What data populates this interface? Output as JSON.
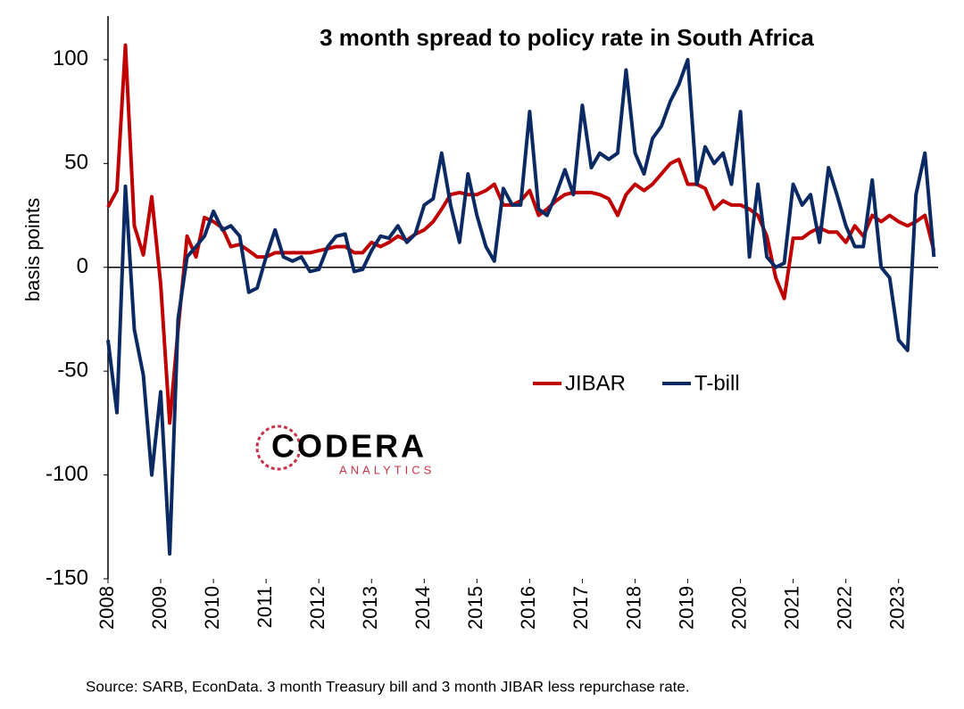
{
  "chart_data": {
    "type": "line",
    "title": "3 month spread to policy rate in South Africa",
    "ylabel": "basis points",
    "source": "Source: SARB, EconData. 3 month Treasury bill and 3 month JIBAR less repurchase rate.",
    "logo": {
      "name": "CODERA",
      "tagline": "ANALYTICS"
    },
    "legend": "center",
    "x": [
      2008.0,
      2008.17,
      2008.33,
      2008.5,
      2008.67,
      2008.83,
      2009.0,
      2009.17,
      2009.33,
      2009.5,
      2009.67,
      2009.83,
      2010.0,
      2010.17,
      2010.33,
      2010.5,
      2010.67,
      2010.83,
      2011.0,
      2011.17,
      2011.33,
      2011.5,
      2011.67,
      2011.83,
      2012.0,
      2012.17,
      2012.33,
      2012.5,
      2012.67,
      2012.83,
      2013.0,
      2013.17,
      2013.33,
      2013.5,
      2013.67,
      2013.83,
      2014.0,
      2014.17,
      2014.33,
      2014.5,
      2014.67,
      2014.83,
      2015.0,
      2015.17,
      2015.33,
      2015.5,
      2015.67,
      2015.83,
      2016.0,
      2016.17,
      2016.33,
      2016.5,
      2016.67,
      2016.83,
      2017.0,
      2017.17,
      2017.33,
      2017.5,
      2017.67,
      2017.83,
      2018.0,
      2018.17,
      2018.33,
      2018.5,
      2018.67,
      2018.83,
      2019.0,
      2019.17,
      2019.33,
      2019.5,
      2019.67,
      2019.83,
      2020.0,
      2020.17,
      2020.33,
      2020.5,
      2020.67,
      2020.83,
      2021.0,
      2021.17,
      2021.33,
      2021.5,
      2021.67,
      2021.83,
      2022.0,
      2022.17,
      2022.33,
      2022.5,
      2022.67,
      2022.83,
      2023.0,
      2023.17,
      2023.33,
      2023.5,
      2023.67
    ],
    "series": [
      {
        "name": "JIBAR",
        "color": "#c00000",
        "values": [
          29,
          37,
          107,
          20,
          6,
          34,
          -8,
          -75,
          -30,
          15,
          5,
          24,
          22,
          19,
          10,
          11,
          8,
          5,
          5,
          7,
          7,
          7,
          7,
          7,
          8,
          9,
          10,
          10,
          7,
          7,
          12,
          10,
          12,
          15,
          13,
          16,
          18,
          22,
          28,
          35,
          36,
          35,
          35,
          37,
          40,
          30,
          30,
          32,
          37,
          25,
          28,
          32,
          35,
          36,
          36,
          36,
          35,
          33,
          25,
          35,
          40,
          37,
          40,
          45,
          50,
          52,
          40,
          40,
          38,
          28,
          32,
          30,
          30,
          28,
          25,
          15,
          -5,
          -15,
          14,
          14,
          17,
          19,
          17,
          17,
          12,
          20,
          15,
          25,
          22,
          25,
          22,
          20,
          22,
          25,
          8
        ]
      },
      {
        "name": "T-bill",
        "color": "#0b2a63",
        "values": [
          -35,
          -70,
          39,
          -30,
          -52,
          -100,
          -60,
          -138,
          -25,
          5,
          10,
          15,
          27,
          18,
          20,
          15,
          -12,
          -10,
          5,
          18,
          5,
          3,
          5,
          -2,
          -1,
          10,
          15,
          16,
          -2,
          -1,
          8,
          15,
          14,
          20,
          12,
          16,
          30,
          33,
          55,
          30,
          12,
          45,
          25,
          10,
          3,
          38,
          30,
          30,
          75,
          28,
          25,
          35,
          47,
          35,
          78,
          48,
          55,
          52,
          55,
          95,
          55,
          45,
          62,
          68,
          80,
          88,
          100,
          40,
          58,
          50,
          55,
          40,
          75,
          5,
          40,
          5,
          0,
          2,
          40,
          30,
          35,
          12,
          48,
          35,
          20,
          10,
          10,
          42,
          0,
          -5,
          -35,
          -40,
          35,
          55,
          5
        ]
      }
    ],
    "xlim": [
      2008,
      2023.75
    ],
    "xticks": [
      2008,
      2009,
      2010,
      2011,
      2012,
      2013,
      2014,
      2015,
      2016,
      2017,
      2018,
      2019,
      2020,
      2021,
      2022,
      2023
    ],
    "ylim": [
      -150,
      121
    ],
    "yticks": [
      -150,
      -100,
      -50,
      0,
      50,
      100
    ]
  }
}
